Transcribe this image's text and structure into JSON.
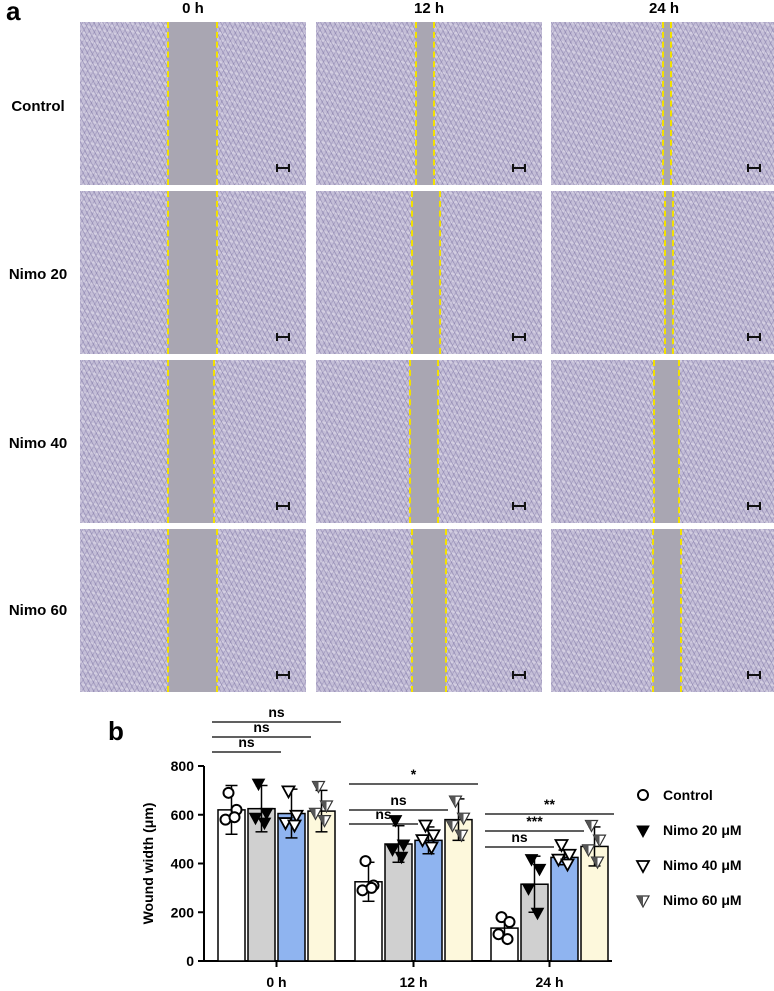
{
  "panel_a": {
    "label": "a",
    "columns": [
      "0 h",
      "12 h",
      "24 h"
    ],
    "rows": [
      "Control",
      "Nimo 20",
      "Nimo 40",
      "Nimo 60"
    ],
    "wound_edge_color": "#f2e100",
    "cell_color": "#c4bed7"
  },
  "panel_b": {
    "label": "b"
  },
  "chart_data": {
    "type": "bar",
    "title": "",
    "xlabel": "",
    "ylabel": "Wound width (μm)",
    "ylim": [
      0,
      800
    ],
    "yticks": [
      "0",
      "200",
      "400",
      "600",
      "800"
    ],
    "categories": [
      "0 h",
      "12 h",
      "24 h"
    ],
    "grid": false,
    "legend_position": "right",
    "series": [
      {
        "name": "Control",
        "color": "#ffffff",
        "marker": "circle-open",
        "values": [
          620,
          325,
          135
        ],
        "errors": [
          100,
          80,
          40
        ],
        "points": [
          [
            690,
            620,
            580,
            590
          ],
          [
            410,
            310,
            290,
            300
          ],
          [
            180,
            160,
            110,
            90
          ]
        ]
      },
      {
        "name": "Nimo 20 μM",
        "color": "#d0d0d0",
        "marker": "triangle-down-filled",
        "values": [
          625,
          480,
          315
        ],
        "errors": [
          95,
          75,
          115
        ],
        "points": [
          [
            730,
            610,
            590,
            570
          ],
          [
            580,
            480,
            460,
            430
          ],
          [
            420,
            380,
            300,
            200
          ]
        ]
      },
      {
        "name": "Nimo 40 μM",
        "color": "#8fb4f0",
        "marker": "triangle-down-open",
        "values": [
          605,
          495,
          425
        ],
        "errors": [
          100,
          55,
          30
        ],
        "points": [
          [
            700,
            600,
            570,
            560
          ],
          [
            560,
            520,
            500,
            470
          ],
          [
            480,
            440,
            420,
            400
          ]
        ]
      },
      {
        "name": "Nimo 60 μM",
        "color": "#fdf8dc",
        "marker": "triangle-down-half",
        "values": [
          615,
          580,
          470
        ],
        "errors": [
          85,
          85,
          80
        ],
        "points": [
          [
            720,
            640,
            610,
            580
          ],
          [
            660,
            590,
            560,
            520
          ],
          [
            560,
            500,
            460,
            410
          ]
        ]
      }
    ],
    "comparisons": [
      {
        "group": "0 h",
        "from": "Control",
        "to": "Nimo 20 μM",
        "label": "ns"
      },
      {
        "group": "0 h",
        "from": "Control",
        "to": "Nimo 40 μM",
        "label": "ns"
      },
      {
        "group": "0 h",
        "from": "Control",
        "to": "Nimo 60 μM",
        "label": "ns"
      },
      {
        "group": "12 h",
        "from": "Control",
        "to": "Nimo 20 μM",
        "label": "ns"
      },
      {
        "group": "12 h",
        "from": "Control",
        "to": "Nimo 40 μM",
        "label": "ns"
      },
      {
        "group": "12 h",
        "from": "Control",
        "to": "Nimo 60 μM",
        "label": "*"
      },
      {
        "group": "24 h",
        "from": "Control",
        "to": "Nimo 20 μM",
        "label": "ns"
      },
      {
        "group": "24 h",
        "from": "Control",
        "to": "Nimo 40 μM",
        "label": "***"
      },
      {
        "group": "24 h",
        "from": "Control",
        "to": "Nimo 60 μM",
        "label": "**"
      }
    ]
  }
}
